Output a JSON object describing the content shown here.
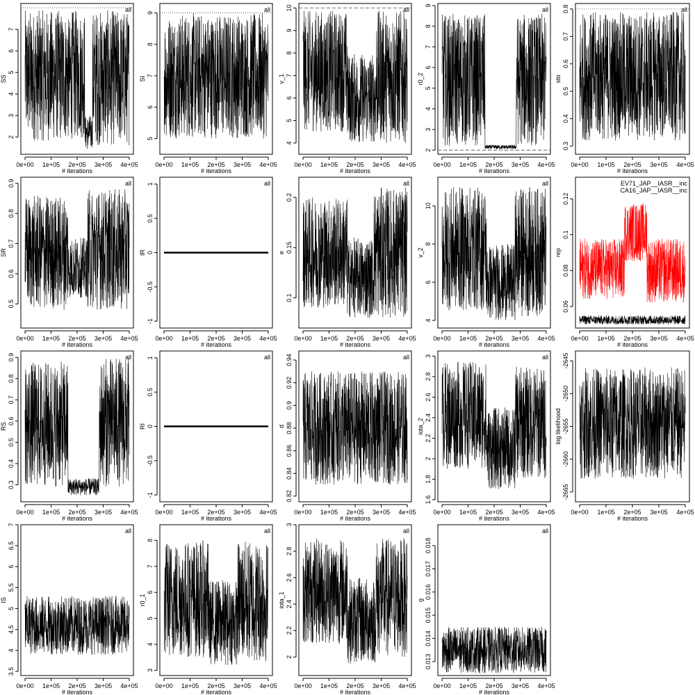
{
  "chart_data": [
    {
      "type": "line",
      "ylabel": "SS",
      "xlabel": "# iterations",
      "annotation": "all",
      "ylim": [
        1.2,
        8.2
      ],
      "y_ticks": [
        2,
        3,
        4,
        5,
        6,
        7
      ],
      "x_ticks": [
        "0e+00",
        "1e+05",
        "2e+05",
        "3e+05",
        "4e+05"
      ],
      "xlim": [
        0,
        400000
      ],
      "ref_line": {
        "y": 8,
        "style": "dotted"
      },
      "series": [
        {
          "regimes": [
            {
              "x": [
                0,
                165000
              ],
              "lo": 1.8,
              "hi": 7.9
            },
            {
              "x": [
                165000,
                175000
              ],
              "lo": 1.8,
              "hi": 7.5
            },
            {
              "x": [
                175000,
                230000
              ],
              "lo": 1.9,
              "hi": 7.9
            },
            {
              "x": [
                230000,
                258000
              ],
              "lo": 1.4,
              "hi": 3.0
            },
            {
              "x": [
                258000,
                400000
              ],
              "lo": 1.6,
              "hi": 7.9
            }
          ]
        }
      ]
    },
    {
      "type": "line",
      "ylabel": "SI",
      "xlabel": "# iterations",
      "annotation": "all",
      "ylim": [
        4.5,
        9.3
      ],
      "y_ticks": [
        5,
        6,
        7,
        8,
        9
      ],
      "x_ticks": [
        "0e+00",
        "1e+05",
        "2e+05",
        "3e+05",
        "4e+05"
      ],
      "xlim": [
        0,
        400000
      ],
      "ref_line": {
        "y": 9,
        "style": "dotted"
      },
      "series": [
        {
          "regimes": [
            {
              "x": [
                0,
                400000
              ],
              "lo": 5.0,
              "hi": 9.0
            }
          ]
        }
      ]
    },
    {
      "type": "line",
      "ylabel": "v_1",
      "xlabel": "# iterations",
      "annotation": "all",
      "ylim": [
        3.5,
        10.2
      ],
      "y_ticks": [
        4,
        5,
        6,
        7,
        8,
        9,
        10
      ],
      "x_ticks": [
        "0e+00",
        "1e+05",
        "2e+05",
        "3e+05",
        "4e+05"
      ],
      "xlim": [
        0,
        400000
      ],
      "ref_line": {
        "y": 10,
        "style": "dashed"
      },
      "series": [
        {
          "regimes": [
            {
              "x": [
                0,
                170000
              ],
              "lo": 4.5,
              "hi": 9.9
            },
            {
              "x": [
                170000,
                280000
              ],
              "lo": 4.0,
              "hi": 8.0
            },
            {
              "x": [
                280000,
                400000
              ],
              "lo": 4.0,
              "hi": 9.9
            }
          ]
        }
      ]
    },
    {
      "type": "line",
      "ylabel": "r0_2",
      "xlabel": "# iterations",
      "annotation": "all",
      "ylim": [
        1.8,
        9.1
      ],
      "y_ticks": [
        2,
        3,
        4,
        5,
        6,
        7,
        8,
        9
      ],
      "x_ticks": [
        "0e+00",
        "1e+05",
        "2e+05",
        "3e+05",
        "4e+05"
      ],
      "xlim": [
        0,
        400000
      ],
      "ref_line": {
        "y": 2,
        "style": "dashed"
      },
      "series": [
        {
          "regimes": [
            {
              "x": [
                0,
                165000
              ],
              "lo": 2.2,
              "hi": 8.6
            },
            {
              "x": [
                165000,
                285000
              ],
              "lo": 2.05,
              "hi": 2.25
            },
            {
              "x": [
                285000,
                400000
              ],
              "lo": 2.2,
              "hi": 8.6
            }
          ]
        }
      ]
    },
    {
      "type": "line",
      "ylabel": "sto",
      "xlabel": "# iterations",
      "annotation": "all",
      "ylim": [
        0.27,
        0.82
      ],
      "y_ticks": [
        0.3,
        0.4,
        0.5,
        0.6,
        0.7,
        0.8
      ],
      "x_ticks": [
        "0e+00",
        "1e+05",
        "2e+05",
        "3e+05",
        "4e+05"
      ],
      "xlim": [
        0,
        400000
      ],
      "ref_line": {
        "y": 0.8,
        "style": "dotted"
      },
      "series": [
        {
          "regimes": [
            {
              "x": [
                0,
                400000
              ],
              "lo": 0.32,
              "hi": 0.79
            }
          ]
        }
      ]
    },
    {
      "type": "line",
      "ylabel": "SR",
      "xlabel": "# iterations",
      "annotation": "all",
      "ylim": [
        0.42,
        0.92
      ],
      "y_ticks": [
        0.5,
        0.6,
        0.7,
        0.8,
        0.9
      ],
      "x_ticks": [
        "0e+00",
        "1e+05",
        "2e+05",
        "3e+05",
        "4e+05"
      ],
      "xlim": [
        0,
        400000
      ],
      "series": [
        {
          "regimes": [
            {
              "x": [
                0,
                165000
              ],
              "lo": 0.48,
              "hi": 0.86
            },
            {
              "x": [
                165000,
                240000
              ],
              "lo": 0.52,
              "hi": 0.72
            },
            {
              "x": [
                240000,
                400000
              ],
              "lo": 0.48,
              "hi": 0.88
            }
          ]
        }
      ]
    },
    {
      "type": "line",
      "ylabel": "IR",
      "xlabel": "# iterations",
      "annotation": "all",
      "ylim": [
        -1.1,
        1.1
      ],
      "y_ticks": [
        -1.0,
        -0.5,
        0.0,
        0.5,
        1.0
      ],
      "x_ticks": [
        "0e+00",
        "1e+05",
        "2e+05",
        "3e+05",
        "4e+05"
      ],
      "xlim": [
        0,
        400000
      ],
      "constant": 0.0
    },
    {
      "type": "line",
      "ylabel": "e",
      "xlabel": "# iterations",
      "annotation": "all",
      "ylim": [
        0.07,
        0.22
      ],
      "y_ticks": [
        0.1,
        0.15,
        0.2
      ],
      "x_ticks": [
        "0e+00",
        "1e+05",
        "2e+05",
        "3e+05",
        "4e+05"
      ],
      "xlim": [
        0,
        400000
      ],
      "series": [
        {
          "regimes": [
            {
              "x": [
                0,
                170000
              ],
              "lo": 0.09,
              "hi": 0.2
            },
            {
              "x": [
                170000,
                270000
              ],
              "lo": 0.08,
              "hi": 0.16
            },
            {
              "x": [
                270000,
                400000
              ],
              "lo": 0.08,
              "hi": 0.21
            }
          ]
        }
      ]
    },
    {
      "type": "line",
      "ylabel": "v_2",
      "xlabel": "# iterations",
      "annotation": "all",
      "ylim": [
        3.6,
        11.5
      ],
      "y_ticks": [
        4,
        6,
        8,
        10
      ],
      "x_ticks": [
        "0e+00",
        "1e+05",
        "2e+05",
        "3e+05",
        "4e+05"
      ],
      "xlim": [
        0,
        400000
      ],
      "series": [
        {
          "regimes": [
            {
              "x": [
                0,
                170000
              ],
              "lo": 4.5,
              "hi": 11
            },
            {
              "x": [
                170000,
                280000
              ],
              "lo": 4.0,
              "hi": 8.0
            },
            {
              "x": [
                280000,
                400000
              ],
              "lo": 4.2,
              "hi": 11
            }
          ]
        }
      ]
    },
    {
      "type": "line",
      "ylabel": "rep",
      "xlabel": "# iterations",
      "ylim": [
        0.048,
        0.132
      ],
      "y_ticks": [
        0.06,
        0.08,
        0.1,
        0.12
      ],
      "x_ticks": [
        "0e+00",
        "1e+05",
        "2e+05",
        "3e+05",
        "4e+05"
      ],
      "xlim": [
        0,
        400000
      ],
      "legend": [
        "EV71_JAP__IASR__inc",
        "CA16_JAP__IASR__inc"
      ],
      "series": [
        {
          "name": "CA16_JAP__IASR__inc",
          "color": "#ff0000",
          "regimes": [
            {
              "x": [
                0,
                170000
              ],
              "lo": 0.064,
              "hi": 0.098
            },
            {
              "x": [
                170000,
                255000
              ],
              "lo": 0.085,
              "hi": 0.118
            },
            {
              "x": [
                255000,
                400000
              ],
              "lo": 0.062,
              "hi": 0.098
            }
          ]
        },
        {
          "name": "EV71_JAP__IASR__inc",
          "color": "#000000",
          "regimes": [
            {
              "x": [
                0,
                400000
              ],
              "lo": 0.05,
              "hi": 0.055
            }
          ]
        }
      ]
    },
    {
      "type": "line",
      "ylabel": "RS",
      "xlabel": "# iterations",
      "annotation": "all",
      "ylim": [
        0.22,
        0.93
      ],
      "y_ticks": [
        0.3,
        0.4,
        0.5,
        0.6,
        0.7,
        0.8,
        0.9
      ],
      "x_ticks": [
        "0e+00",
        "1e+05",
        "2e+05",
        "3e+05",
        "4e+05"
      ],
      "xlim": [
        0,
        400000
      ],
      "series": [
        {
          "regimes": [
            {
              "x": [
                0,
                165000
              ],
              "lo": 0.29,
              "hi": 0.88
            },
            {
              "x": [
                165000,
                285000
              ],
              "lo": 0.25,
              "hi": 0.33
            },
            {
              "x": [
                285000,
                400000
              ],
              "lo": 0.29,
              "hi": 0.9
            }
          ]
        }
      ]
    },
    {
      "type": "line",
      "ylabel": "RI",
      "xlabel": "# iterations",
      "annotation": "all",
      "ylim": [
        -1.1,
        1.1
      ],
      "y_ticks": [
        -1.0,
        -0.5,
        0.0,
        0.5,
        1.0
      ],
      "x_ticks": [
        "0e+00",
        "1e+05",
        "2e+05",
        "3e+05",
        "4e+05"
      ],
      "xlim": [
        0,
        400000
      ],
      "constant": 0.0
    },
    {
      "type": "line",
      "ylabel": "d",
      "xlabel": "# iterations",
      "annotation": "all",
      "ylim": [
        0.815,
        0.948
      ],
      "y_ticks": [
        0.82,
        0.84,
        0.86,
        0.88,
        0.9,
        0.92,
        0.94
      ],
      "x_ticks": [
        "0e+00",
        "1e+05",
        "2e+05",
        "3e+05",
        "4e+05"
      ],
      "xlim": [
        0,
        400000
      ],
      "series": [
        {
          "regimes": [
            {
              "x": [
                0,
                400000
              ],
              "lo": 0.83,
              "hi": 0.93
            }
          ]
        }
      ]
    },
    {
      "type": "line",
      "ylabel": "iota_2",
      "xlabel": "# iterations",
      "annotation": "all",
      "ylim": [
        1.58,
        3.05
      ],
      "y_ticks": [
        1.6,
        1.8,
        2.0,
        2.2,
        2.4,
        2.6,
        2.8,
        3.0
      ],
      "x_ticks": [
        "0e+00",
        "1e+05",
        "2e+05",
        "3e+05",
        "4e+05"
      ],
      "xlim": [
        0,
        400000
      ],
      "series": [
        {
          "regimes": [
            {
              "x": [
                0,
                170000
              ],
              "lo": 1.9,
              "hi": 2.95
            },
            {
              "x": [
                170000,
                280000
              ],
              "lo": 1.7,
              "hi": 2.5
            },
            {
              "x": [
                280000,
                400000
              ],
              "lo": 1.8,
              "hi": 2.9
            }
          ]
        }
      ]
    },
    {
      "type": "line",
      "ylabel": "log likelihood",
      "xlabel": "# iterations",
      "ylim": [
        -2666.5,
        -2643.5
      ],
      "y_ticks": [
        -2665,
        -2660,
        -2655,
        -2650,
        -2645
      ],
      "x_ticks": [
        "0e+00",
        "1e+05",
        "2e+05",
        "3e+05",
        "4e+05"
      ],
      "xlim": [
        0,
        400000
      ],
      "series": [
        {
          "regimes": [
            {
              "x": [
                0,
                400000
              ],
              "lo": -2663,
              "hi": -2646
            }
          ]
        }
      ]
    },
    {
      "type": "line",
      "ylabel": "IS",
      "xlabel": "# iterations",
      "annotation": "all",
      "ylim": [
        3.4,
        7.0
      ],
      "y_ticks": [
        3.5,
        4.0,
        4.5,
        5.0,
        5.5,
        6.0,
        6.5,
        7.0
      ],
      "x_ticks": [
        "0e+00",
        "1e+05",
        "2e+05",
        "3e+05",
        "4e+05"
      ],
      "xlim": [
        0,
        400000
      ],
      "series": [
        {
          "regimes": [
            {
              "x": [
                0,
                400000
              ],
              "lo": 3.9,
              "hi": 5.3
            }
          ]
        }
      ]
    },
    {
      "type": "line",
      "ylabel": "r0_1",
      "xlabel": "# iterations",
      "annotation": "all",
      "ylim": [
        2.8,
        8.6
      ],
      "y_ticks": [
        3,
        4,
        5,
        6,
        7,
        8
      ],
      "x_ticks": [
        "0e+00",
        "1e+05",
        "2e+05",
        "3e+05",
        "4e+05"
      ],
      "xlim": [
        0,
        400000
      ],
      "series": [
        {
          "regimes": [
            {
              "x": [
                0,
                170000
              ],
              "lo": 3.5,
              "hi": 8.0
            },
            {
              "x": [
                170000,
                280000
              ],
              "lo": 3.2,
              "hi": 6.5
            },
            {
              "x": [
                280000,
                400000
              ],
              "lo": 3.3,
              "hi": 8.0
            }
          ]
        }
      ]
    },
    {
      "type": "line",
      "ylabel": "iota_1",
      "xlabel": "# iterations",
      "annotation": "all",
      "ylim": [
        1.86,
        3.0
      ],
      "y_ticks": [
        2.0,
        2.2,
        2.4,
        2.6,
        2.8,
        3.0
      ],
      "x_ticks": [
        "0e+00",
        "1e+05",
        "2e+05",
        "3e+05",
        "4e+05"
      ],
      "xlim": [
        0,
        400000
      ],
      "series": [
        {
          "regimes": [
            {
              "x": [
                0,
                170000
              ],
              "lo": 2.1,
              "hi": 2.9
            },
            {
              "x": [
                170000,
                280000
              ],
              "lo": 1.95,
              "hi": 2.6
            },
            {
              "x": [
                280000,
                400000
              ],
              "lo": 2.0,
              "hi": 2.9
            }
          ]
        }
      ]
    },
    {
      "type": "line",
      "ylabel": "g",
      "xlabel": "# iterations",
      "annotation": "all",
      "ylim": [
        0.0124,
        0.0189
      ],
      "y_ticks": [
        0.013,
        0.014,
        0.015,
        0.016,
        0.017,
        0.018
      ],
      "x_ticks": [
        "0e+00",
        "1e+05",
        "2e+05",
        "3e+05",
        "4e+05"
      ],
      "xlim": [
        0,
        400000
      ],
      "series": [
        {
          "regimes": [
            {
              "x": [
                0,
                400000
              ],
              "lo": 0.0125,
              "hi": 0.0145
            }
          ]
        }
      ]
    }
  ]
}
